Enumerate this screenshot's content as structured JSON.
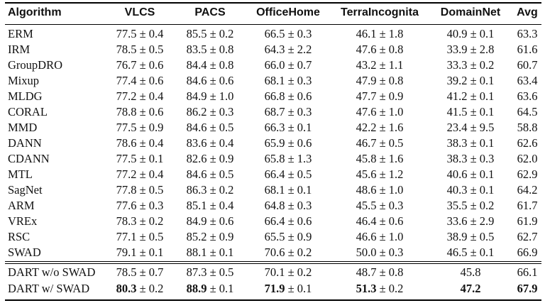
{
  "header": [
    "Algorithm",
    "VLCS",
    "PACS",
    "OfficeHome",
    "TerraIncognita",
    "DomainNet",
    "Avg"
  ],
  "rows": [
    [
      "ERM",
      "77.5 ± 0.4",
      "85.5 ± 0.2",
      "66.5 ± 0.3",
      "46.1 ± 1.8",
      "40.9 ± 0.1",
      "63.3"
    ],
    [
      "IRM",
      "78.5 ± 0.5",
      "83.5 ± 0.8",
      "64.3 ± 2.2",
      "47.6 ± 0.8",
      "33.9 ± 2.8",
      "61.6"
    ],
    [
      "GroupDRO",
      "76.7 ± 0.6",
      "84.4 ± 0.8",
      "66.0 ± 0.7",
      "43.2 ± 1.1",
      "33.3 ± 0.2",
      "60.7"
    ],
    [
      "Mixup",
      "77.4 ± 0.6",
      "84.6 ± 0.6",
      "68.1 ± 0.3",
      "47.9 ± 0.8",
      "39.2 ± 0.1",
      "63.4"
    ],
    [
      "MLDG",
      "77.2 ± 0.4",
      "84.9 ± 1.0",
      "66.8 ± 0.6",
      "47.7 ± 0.9",
      "41.2 ± 0.1",
      "63.6"
    ],
    [
      "CORAL",
      "78.8 ± 0.6",
      "86.2 ± 0.3",
      "68.7 ± 0.3",
      "47.6 ± 1.0",
      "41.5 ± 0.1",
      "64.5"
    ],
    [
      "MMD",
      "77.5 ± 0.9",
      "84.6 ± 0.5",
      "66.3 ± 0.1",
      "42.2 ± 1.6",
      "23.4 ± 9.5",
      "58.8"
    ],
    [
      "DANN",
      "78.6 ± 0.4",
      "83.6 ± 0.4",
      "65.9 ± 0.6",
      "46.7 ± 0.5",
      "38.3 ± 0.1",
      "62.6"
    ],
    [
      "CDANN",
      "77.5 ± 0.1",
      "82.6 ± 0.9",
      "65.8 ± 1.3",
      "45.8 ± 1.6",
      "38.3 ± 0.3",
      "62.0"
    ],
    [
      "MTL",
      "77.2 ± 0.4",
      "84.6 ± 0.5",
      "66.4 ± 0.5",
      "45.6 ± 1.2",
      "40.6 ± 0.1",
      "62.9"
    ],
    [
      "SagNet",
      "77.8 ± 0.5",
      "86.3 ± 0.2",
      "68.1 ± 0.1",
      "48.6 ± 1.0",
      "40.3 ± 0.1",
      "64.2"
    ],
    [
      "ARM",
      "77.6 ± 0.3",
      "85.1 ± 0.4",
      "64.8 ± 0.3",
      "45.5 ± 0.3",
      "35.5 ± 0.2",
      "61.7"
    ],
    [
      "VREx",
      "78.3 ± 0.2",
      "84.9 ± 0.6",
      "66.4 ± 0.6",
      "46.4 ± 0.6",
      "33.6 ± 2.9",
      "61.9"
    ],
    [
      "RSC",
      "77.1 ± 0.5",
      "85.2 ± 0.9",
      "65.5 ± 0.9",
      "46.6 ± 1.0",
      "38.9 ± 0.5",
      "62.7"
    ],
    [
      "SWAD",
      "79.1 ± 0.1",
      "88.1 ± 0.1",
      "70.6 ± 0.2",
      "50.0 ± 0.3",
      "46.5 ± 0.1",
      "66.9"
    ]
  ],
  "dart_rows": [
    {
      "cells": [
        {
          "main": "DART w/o SWAD",
          "bold": false
        },
        {
          "main": "78.5",
          "rest": " ± 0.7",
          "bold": false
        },
        {
          "main": "87.3",
          "rest": " ± 0.5",
          "bold": false
        },
        {
          "main": "70.1",
          "rest": " ± 0.2",
          "bold": false
        },
        {
          "main": "48.7",
          "rest": " ± 0.8",
          "bold": false
        },
        {
          "main": "45.8",
          "bold": false
        },
        {
          "main": "66.1",
          "bold": false
        }
      ]
    },
    {
      "cells": [
        {
          "main": "DART w/ SWAD",
          "bold": false
        },
        {
          "main": "80.3",
          "rest": " ± 0.2",
          "bold": true
        },
        {
          "main": "88.9",
          "rest": " ± 0.1",
          "bold": true
        },
        {
          "main": "71.9",
          "rest": " ± 0.1",
          "bold": true
        },
        {
          "main": "51.3",
          "rest": " ± 0.2",
          "bold": true
        },
        {
          "main": "47.2",
          "bold": true
        },
        {
          "main": "67.9",
          "bold": true
        }
      ]
    }
  ]
}
